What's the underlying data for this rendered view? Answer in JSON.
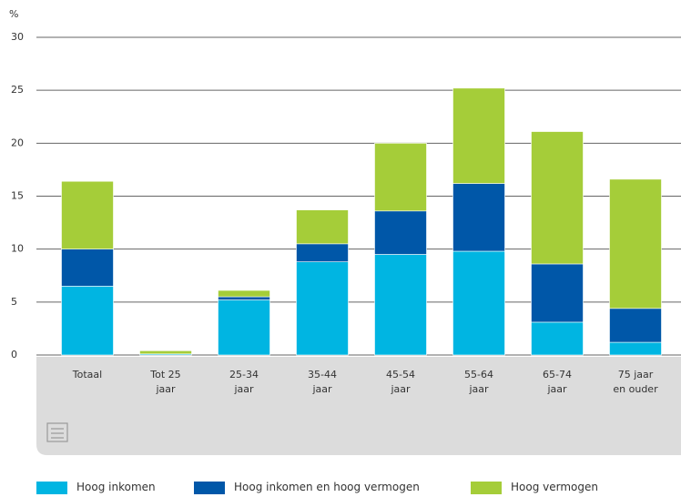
{
  "chart_data": {
    "type": "stacked_bar",
    "y_label": "%",
    "categories": [
      "Totaal",
      "Tot 25\njaar",
      "25-34\njaar",
      "35-44\njaar",
      "45-54\njaar",
      "55-64\njaar",
      "65-74\njaar",
      "75 jaar\nen ouder"
    ],
    "series": [
      {
        "name": "Hoog inkomen",
        "color": "#00b5e2",
        "values": [
          6.5,
          0.1,
          5.2,
          8.8,
          9.5,
          9.8,
          3.1,
          1.2
        ]
      },
      {
        "name": "Hoog inkomen en hoog vermogen",
        "color": "#0057a8",
        "values": [
          3.5,
          0,
          0.3,
          1.7,
          4.1,
          6.4,
          5.5,
          3.2
        ]
      },
      {
        "name": "Hoog vermogen",
        "color": "#a5cd39",
        "values": [
          6.4,
          0.3,
          0.6,
          3.2,
          6.4,
          9.0,
          12.5,
          12.2
        ]
      }
    ],
    "ylim": [
      0,
      30
    ],
    "yticks": [
      0,
      5,
      10,
      15,
      20,
      25,
      30
    ],
    "grid": true,
    "legend": "bottom"
  }
}
